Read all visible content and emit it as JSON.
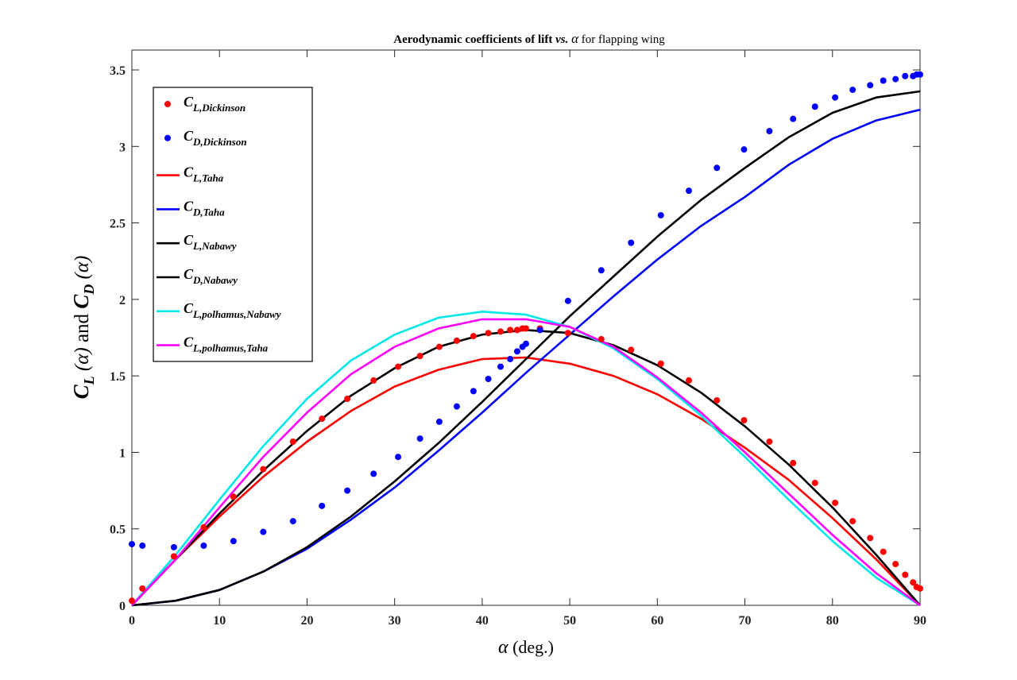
{
  "chart_data": {
    "type": "line",
    "title": {
      "part1": "Aerodynamic coefficients of lift ",
      "vs": "vs.",
      "alpha": "α",
      "part2": "  for flapping wing"
    },
    "xlabel": {
      "sym": "α",
      "text": " (deg.)"
    },
    "ylabel": {
      "cl": "C",
      "cl_sub": "L",
      "alpha1": "(α)",
      "and": " and ",
      "cd": "C",
      "cd_sub": "D",
      "alpha2": "(α)"
    },
    "xlim": [
      0,
      90
    ],
    "ylim": [
      0,
      3.63
    ],
    "xticks": [
      0,
      10,
      20,
      30,
      40,
      50,
      60,
      70,
      80,
      90
    ],
    "yticks": [
      0,
      0.5,
      1,
      1.5,
      2,
      2.5,
      3,
      3.5
    ],
    "ytick_labels": [
      "0",
      "0.5",
      "1",
      "1.5",
      "2",
      "2.5",
      "3",
      "3.5"
    ],
    "grid": false,
    "legend_position": "top-left",
    "series": [
      {
        "name": "C_L,Dickinson",
        "sym": "C",
        "sub": "L,Dickinson",
        "kind": "scatter",
        "color": "#ff0000",
        "x": [
          0,
          1.2,
          4.8,
          8.2,
          11.6,
          15.0,
          18.4,
          21.7,
          24.6,
          27.6,
          30.4,
          32.9,
          35.1,
          37.1,
          39.0,
          40.7,
          42.1,
          43.2,
          44.0,
          44.6,
          45.0,
          46.6,
          49.8,
          53.6,
          57.0,
          60.4,
          63.6,
          66.8,
          69.9,
          72.8,
          75.5,
          78.0,
          80.3,
          82.3,
          84.3,
          85.8,
          87.2,
          88.3,
          89.2,
          89.6,
          90.0
        ],
        "y": [
          0.03,
          0.11,
          0.32,
          0.51,
          0.71,
          0.89,
          1.07,
          1.22,
          1.35,
          1.47,
          1.56,
          1.63,
          1.69,
          1.73,
          1.76,
          1.78,
          1.79,
          1.8,
          1.8,
          1.81,
          1.81,
          1.81,
          1.78,
          1.74,
          1.67,
          1.58,
          1.47,
          1.34,
          1.21,
          1.07,
          0.93,
          0.8,
          0.67,
          0.55,
          0.44,
          0.35,
          0.27,
          0.2,
          0.15,
          0.12,
          0.11
        ]
      },
      {
        "name": "C_D,Dickinson",
        "sym": "C",
        "sub": "D,Dickinson",
        "kind": "scatter",
        "color": "#0000ff",
        "x": [
          0,
          1.2,
          4.8,
          8.2,
          11.6,
          15.0,
          18.4,
          21.7,
          24.6,
          27.6,
          30.4,
          32.9,
          35.1,
          37.1,
          39.0,
          40.7,
          42.1,
          43.2,
          44.0,
          44.6,
          45.0,
          46.6,
          49.8,
          53.6,
          57.0,
          60.4,
          63.6,
          66.8,
          69.9,
          72.8,
          75.5,
          78.0,
          80.3,
          82.3,
          84.3,
          85.8,
          87.2,
          88.3,
          89.2,
          89.6,
          90.0
        ],
        "y": [
          0.4,
          0.39,
          0.38,
          0.39,
          0.42,
          0.48,
          0.55,
          0.65,
          0.75,
          0.86,
          0.97,
          1.09,
          1.2,
          1.3,
          1.4,
          1.48,
          1.56,
          1.61,
          1.66,
          1.69,
          1.71,
          1.8,
          1.99,
          2.19,
          2.37,
          2.55,
          2.71,
          2.86,
          2.98,
          3.1,
          3.18,
          3.26,
          3.32,
          3.37,
          3.4,
          3.43,
          3.44,
          3.46,
          3.46,
          3.47,
          3.47
        ]
      },
      {
        "name": "C_L,Taha",
        "sym": "C",
        "sub": "L,Taha",
        "kind": "line",
        "color": "#ff0000",
        "x": [
          0,
          5,
          10,
          15,
          20,
          25,
          30,
          35,
          40,
          45,
          50,
          55,
          60,
          65,
          70,
          75,
          80,
          85,
          90
        ],
        "y": [
          0,
          0.3,
          0.58,
          0.84,
          1.07,
          1.27,
          1.43,
          1.54,
          1.61,
          1.62,
          1.58,
          1.5,
          1.38,
          1.22,
          1.03,
          0.82,
          0.57,
          0.3,
          0
        ]
      },
      {
        "name": "C_D,Taha",
        "sym": "C",
        "sub": "D,Taha",
        "kind": "line",
        "color": "#0000ff",
        "x": [
          0,
          5,
          10,
          15,
          20,
          25,
          30,
          35,
          40,
          45,
          50,
          55,
          60,
          65,
          70,
          75,
          80,
          85,
          90
        ],
        "y": [
          0,
          0.03,
          0.1,
          0.22,
          0.37,
          0.56,
          0.77,
          1.01,
          1.26,
          1.52,
          1.77,
          2.02,
          2.26,
          2.48,
          2.67,
          2.88,
          3.05,
          3.17,
          3.24
        ]
      },
      {
        "name": "C_L,Nabawy",
        "sym": "C",
        "sub": "L,Nabawy",
        "kind": "line",
        "color": "#000000",
        "x": [
          0,
          5,
          10,
          15,
          20,
          25,
          30,
          35,
          40,
          45,
          50,
          55,
          60,
          65,
          70,
          75,
          80,
          85,
          90
        ],
        "y": [
          0,
          0.3,
          0.6,
          0.88,
          1.14,
          1.37,
          1.55,
          1.69,
          1.77,
          1.8,
          1.78,
          1.7,
          1.57,
          1.39,
          1.17,
          0.92,
          0.64,
          0.33,
          0
        ]
      },
      {
        "name": "C_D,Nabawy",
        "sym": "C",
        "sub": "D,Nabawy",
        "kind": "line",
        "color": "#000000",
        "x": [
          0,
          5,
          10,
          15,
          20,
          25,
          30,
          35,
          40,
          45,
          50,
          55,
          60,
          65,
          70,
          75,
          80,
          85,
          90
        ],
        "y": [
          0,
          0.03,
          0.1,
          0.22,
          0.38,
          0.58,
          0.81,
          1.06,
          1.33,
          1.61,
          1.89,
          2.15,
          2.41,
          2.65,
          2.86,
          3.06,
          3.22,
          3.32,
          3.36
        ]
      },
      {
        "name": "C_L,polhamus,Nabawy",
        "sym": "C",
        "sub": "L,polhamus,Nabawy",
        "kind": "line",
        "color": "#00e8e8",
        "x": [
          0,
          5,
          10,
          15,
          20,
          25,
          30,
          35,
          40,
          45,
          50,
          55,
          60,
          65,
          70,
          75,
          80,
          85,
          90
        ],
        "y": [
          0,
          0.33,
          0.69,
          1.04,
          1.35,
          1.6,
          1.77,
          1.88,
          1.92,
          1.9,
          1.82,
          1.68,
          1.48,
          1.24,
          0.97,
          0.69,
          0.42,
          0.18,
          0
        ]
      },
      {
        "name": "C_L,polhamus,Taha",
        "sym": "C",
        "sub": "L,polhamus,Taha",
        "kind": "line",
        "color": "#ff00ff",
        "x": [
          0,
          5,
          10,
          15,
          20,
          25,
          30,
          35,
          40,
          45,
          50,
          55,
          60,
          65,
          70,
          75,
          80,
          85,
          90
        ],
        "y": [
          0,
          0.3,
          0.64,
          0.97,
          1.26,
          1.51,
          1.69,
          1.81,
          1.87,
          1.87,
          1.82,
          1.69,
          1.49,
          1.26,
          1.0,
          0.73,
          0.46,
          0.21,
          0
        ]
      }
    ]
  }
}
